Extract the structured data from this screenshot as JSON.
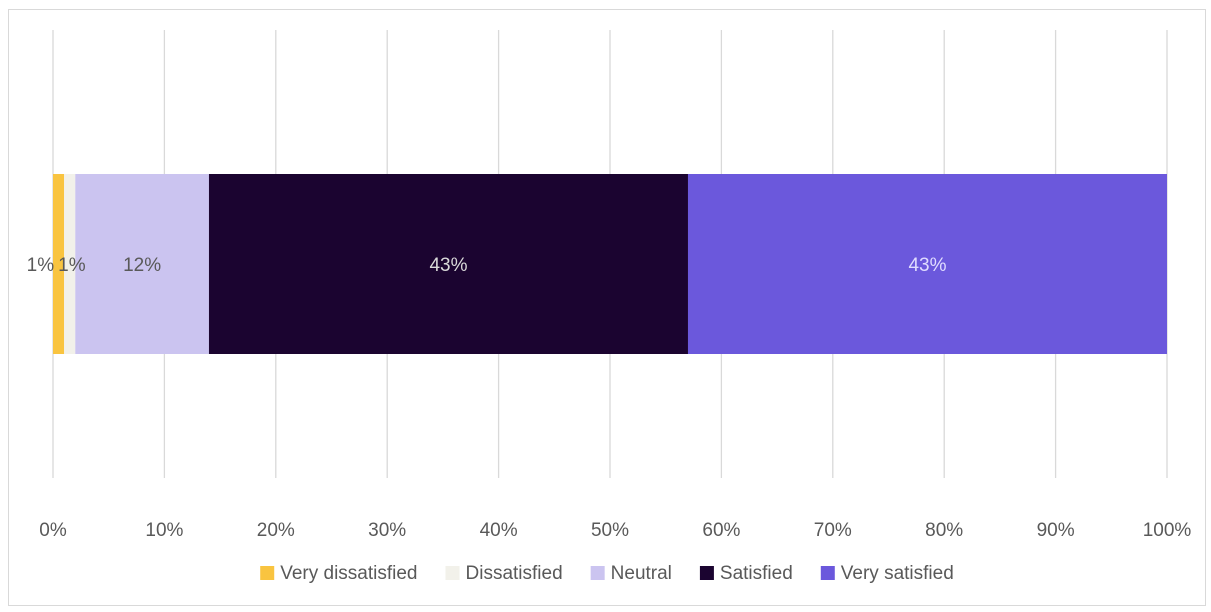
{
  "chart_data": {
    "type": "bar",
    "orientation": "horizontal",
    "stacked": true,
    "title": "",
    "xlabel": "",
    "ylabel": "",
    "xlim": [
      0,
      100
    ],
    "x_ticks": [
      "0%",
      "10%",
      "20%",
      "30%",
      "40%",
      "50%",
      "60%",
      "70%",
      "80%",
      "90%",
      "100%"
    ],
    "grid": "vertical",
    "legend_position": "bottom",
    "categories": [
      ""
    ],
    "series": [
      {
        "name": "Very dissatisfied",
        "values": [
          1
        ],
        "label": "1%",
        "color": "#f9c440",
        "label_color": "#595959"
      },
      {
        "name": "Dissatisfied",
        "values": [
          1
        ],
        "label": "1%",
        "color": "#f2f1ea",
        "label_color": "#595959"
      },
      {
        "name": "Neutral",
        "values": [
          12
        ],
        "label": "12%",
        "color": "#cbc4f0",
        "label_color": "#595959"
      },
      {
        "name": "Satisfied",
        "values": [
          43
        ],
        "label": "43%",
        "color": "#1b0430",
        "label_color": "#d9d9d9"
      },
      {
        "name": "Very satisfied",
        "values": [
          43
        ],
        "label": "43%",
        "color": "#6b58dc",
        "label_color": "#e0dcff"
      }
    ]
  }
}
